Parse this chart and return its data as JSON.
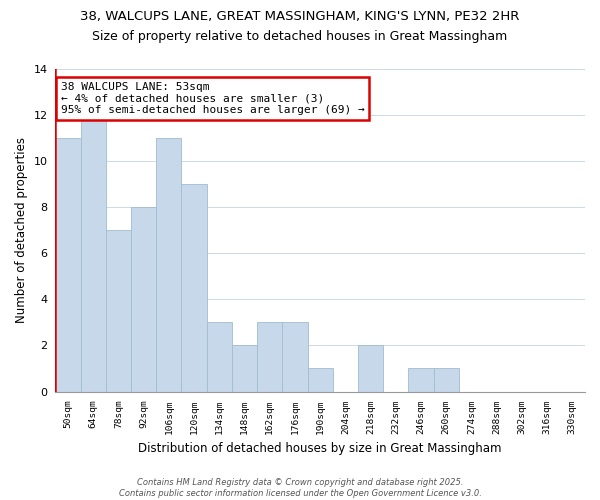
{
  "title_line1": "38, WALCUPS LANE, GREAT MASSINGHAM, KING'S LYNN, PE32 2HR",
  "title_line2": "Size of property relative to detached houses in Great Massingham",
  "xlabel": "Distribution of detached houses by size in Great Massingham",
  "ylabel": "Number of detached properties",
  "bin_labels": [
    "50sqm",
    "64sqm",
    "78sqm",
    "92sqm",
    "106sqm",
    "120sqm",
    "134sqm",
    "148sqm",
    "162sqm",
    "176sqm",
    "190sqm",
    "204sqm",
    "218sqm",
    "232sqm",
    "246sqm",
    "260sqm",
    "274sqm",
    "288sqm",
    "302sqm",
    "316sqm",
    "330sqm"
  ],
  "bar_heights": [
    11,
    12,
    7,
    8,
    11,
    9,
    3,
    2,
    3,
    3,
    1,
    0,
    2,
    0,
    1,
    1,
    0,
    0,
    0,
    0,
    0
  ],
  "bar_color": "#c6d8ea",
  "bar_edge_color": "#a0bdd0",
  "highlight_color": "#dd0000",
  "ylim": [
    0,
    14
  ],
  "yticks": [
    0,
    2,
    4,
    6,
    8,
    10,
    12,
    14
  ],
  "annotation_title": "38 WALCUPS LANE: 53sqm",
  "annotation_line2": "← 4% of detached houses are smaller (3)",
  "annotation_line3": "95% of semi-detached houses are larger (69) →",
  "footer_line1": "Contains HM Land Registry data © Crown copyright and database right 2025.",
  "footer_line2": "Contains public sector information licensed under the Open Government Licence v3.0.",
  "bg_color": "#ffffff",
  "grid_color": "#ccdae8"
}
